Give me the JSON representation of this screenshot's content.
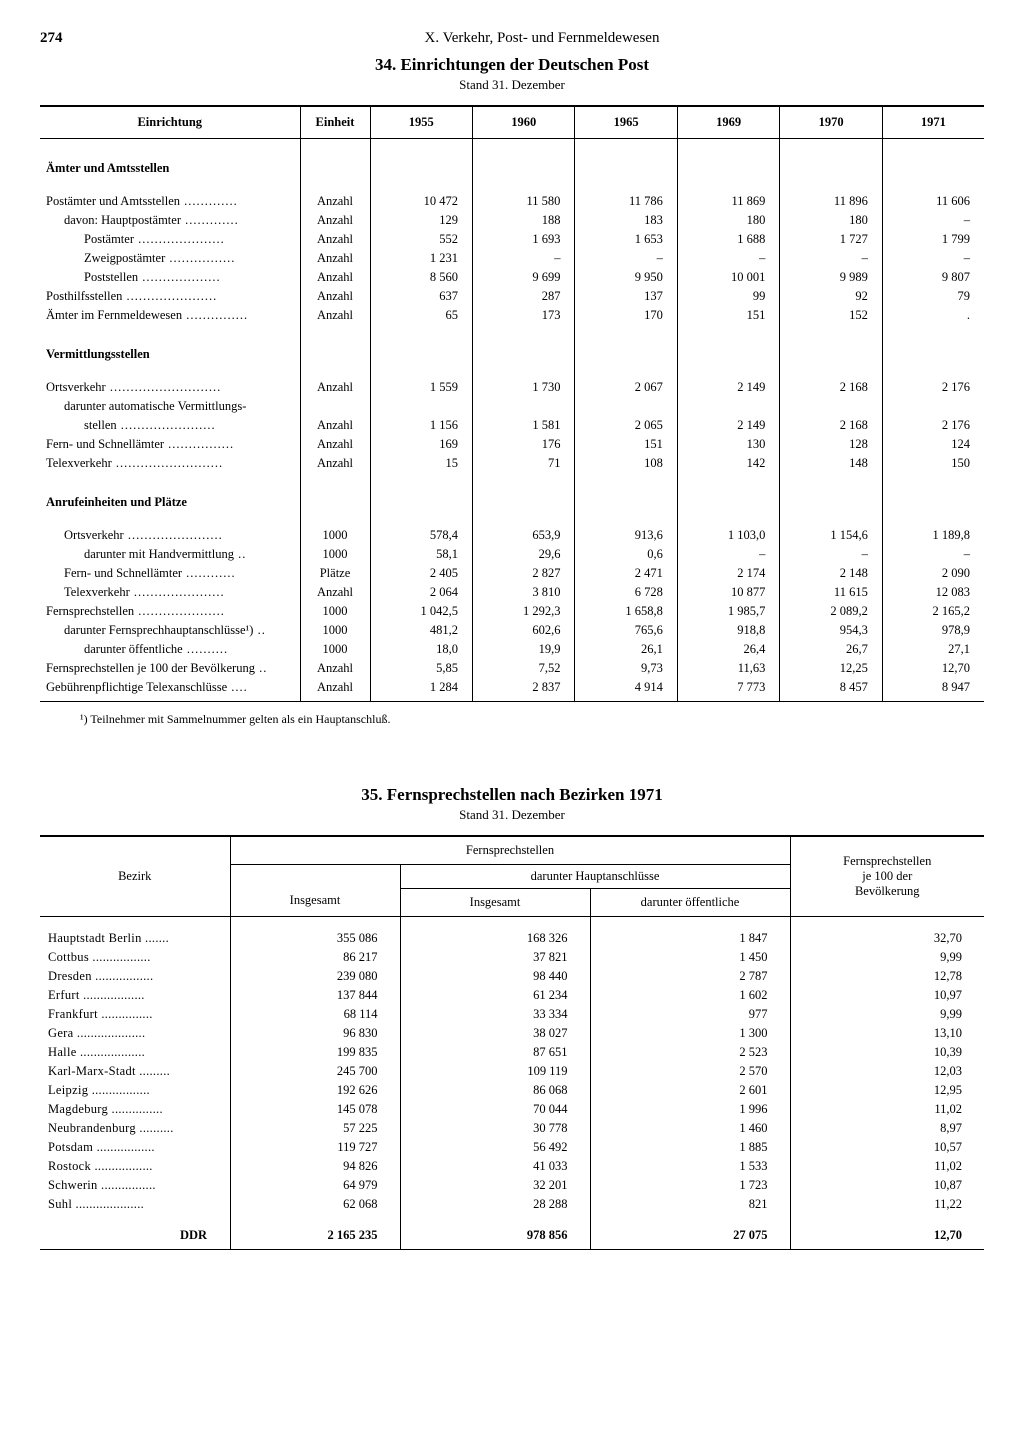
{
  "page_number": "274",
  "chapter": "X. Verkehr, Post- und Fernmeldewesen",
  "table34": {
    "title": "34. Einrichtungen der Deutschen Post",
    "subtitle": "Stand 31. Dezember",
    "columns": [
      "Einrichtung",
      "Einheit",
      "1955",
      "1960",
      "1965",
      "1969",
      "1970",
      "1971"
    ],
    "sections": [
      {
        "heading": "Ämter und Amtsstellen",
        "rows": [
          {
            "label": "Postämter und Amtsstellen",
            "indent": 0,
            "unit": "Anzahl",
            "v": [
              "10 472",
              "11 580",
              "11 786",
              "11 869",
              "11 896",
              "11 606"
            ]
          },
          {
            "label": "davon: Hauptpostämter",
            "indent": 1,
            "unit": "Anzahl",
            "v": [
              "129",
              "188",
              "183",
              "180",
              "180",
              "–"
            ]
          },
          {
            "label": "Postämter",
            "indent": 2,
            "unit": "Anzahl",
            "v": [
              "552",
              "1 693",
              "1 653",
              "1 688",
              "1 727",
              "1 799"
            ]
          },
          {
            "label": "Zweigpostämter",
            "indent": 2,
            "unit": "Anzahl",
            "v": [
              "1 231",
              "–",
              "–",
              "–",
              "–",
              "–"
            ]
          },
          {
            "label": "Poststellen",
            "indent": 2,
            "unit": "Anzahl",
            "v": [
              "8 560",
              "9 699",
              "9 950",
              "10 001",
              "9 989",
              "9 807"
            ]
          },
          {
            "label": "Posthilfsstellen",
            "indent": 0,
            "unit": "Anzahl",
            "v": [
              "637",
              "287",
              "137",
              "99",
              "92",
              "79"
            ]
          },
          {
            "label": "Ämter im Fernmeldewesen",
            "indent": 0,
            "unit": "Anzahl",
            "v": [
              "65",
              "173",
              "170",
              "151",
              "152",
              "."
            ]
          }
        ]
      },
      {
        "heading": "Vermittlungsstellen",
        "rows": [
          {
            "label": "Ortsverkehr",
            "indent": 0,
            "unit": "Anzahl",
            "v": [
              "1 559",
              "1 730",
              "2 067",
              "2 149",
              "2 168",
              "2 176"
            ]
          },
          {
            "label": "darunter automatische Vermittlungs-",
            "indent": 1,
            "unit": "",
            "v": [
              "",
              "",
              "",
              "",
              "",
              ""
            ],
            "nodots": true
          },
          {
            "label": "stellen",
            "indent": 2,
            "unit": "Anzahl",
            "v": [
              "1 156",
              "1 581",
              "2 065",
              "2 149",
              "2 168",
              "2 176"
            ]
          },
          {
            "label": "Fern- und Schnellämter",
            "indent": 0,
            "unit": "Anzahl",
            "v": [
              "169",
              "176",
              "151",
              "130",
              "128",
              "124"
            ]
          },
          {
            "label": "Telexverkehr",
            "indent": 0,
            "unit": "Anzahl",
            "v": [
              "15",
              "71",
              "108",
              "142",
              "148",
              "150"
            ]
          }
        ]
      },
      {
        "heading": "Anrufeinheiten und Plätze",
        "rows": [
          {
            "label": "Ortsverkehr",
            "indent": 1,
            "unit": "1000",
            "v": [
              "578,4",
              "653,9",
              "913,6",
              "1 103,0",
              "1 154,6",
              "1 189,8"
            ]
          },
          {
            "label": "darunter mit Handvermittlung",
            "indent": 2,
            "unit": "1000",
            "v": [
              "58,1",
              "29,6",
              "0,6",
              "–",
              "–",
              "–"
            ]
          },
          {
            "label": "Fern- und Schnellämter",
            "indent": 1,
            "unit": "Plätze",
            "v": [
              "2 405",
              "2 827",
              "2 471",
              "2 174",
              "2 148",
              "2 090"
            ]
          },
          {
            "label": "Telexverkehr",
            "indent": 1,
            "unit": "Anzahl",
            "v": [
              "2 064",
              "3 810",
              "6 728",
              "10 877",
              "11 615",
              "12 083"
            ]
          },
          {
            "label": "Fernsprechstellen",
            "indent": 0,
            "unit": "1000",
            "v": [
              "1 042,5",
              "1 292,3",
              "1 658,8",
              "1 985,7",
              "2 089,2",
              "2 165,2"
            ]
          },
          {
            "label": "darunter Fernsprechhauptanschlüsse¹)",
            "indent": 1,
            "unit": "1000",
            "v": [
              "481,2",
              "602,6",
              "765,6",
              "918,8",
              "954,3",
              "978,9"
            ]
          },
          {
            "label": "darunter öffentliche",
            "indent": 2,
            "unit": "1000",
            "v": [
              "18,0",
              "19,9",
              "26,1",
              "26,4",
              "26,7",
              "27,1"
            ]
          },
          {
            "label": "Fernsprechstellen je 100 der Bevölkerung",
            "indent": 0,
            "unit": "Anzahl",
            "v": [
              "5,85",
              "7,52",
              "9,73",
              "11,63",
              "12,25",
              "12,70"
            ]
          },
          {
            "label": "Gebührenpflichtige Telexanschlüsse",
            "indent": 0,
            "unit": "Anzahl",
            "v": [
              "1 284",
              "2 837",
              "4 914",
              "7 773",
              "8 457",
              "8 947"
            ]
          }
        ]
      }
    ],
    "footnote": "¹) Teilnehmer mit Sammelnummer gelten als ein Hauptanschluß."
  },
  "table35": {
    "title": "35. Fernsprechstellen nach Bezirken 1971",
    "subtitle": "Stand 31. Dezember",
    "head": {
      "bezirk": "Bezirk",
      "fern": "Fernsprechstellen",
      "insg": "Insgesamt",
      "haupt": "darunter Hauptanschlüsse",
      "oeff": "darunter öffentliche",
      "per100": "Fernsprechstellen\nje 100 der\nBevölkerung"
    },
    "rows": [
      {
        "b": "Hauptstadt Berlin",
        "i": "355 086",
        "h": "168 326",
        "o": "1 847",
        "p": "32,70"
      },
      {
        "b": "Cottbus",
        "i": "86 217",
        "h": "37 821",
        "o": "1 450",
        "p": "9,99"
      },
      {
        "b": "Dresden",
        "i": "239 080",
        "h": "98 440",
        "o": "2 787",
        "p": "12,78"
      },
      {
        "b": "Erfurt",
        "i": "137 844",
        "h": "61 234",
        "o": "1 602",
        "p": "10,97"
      },
      {
        "b": "Frankfurt",
        "i": "68 114",
        "h": "33 334",
        "o": "977",
        "p": "9,99"
      },
      {
        "b": "Gera",
        "i": "96 830",
        "h": "38 027",
        "o": "1 300",
        "p": "13,10"
      },
      {
        "b": "Halle",
        "i": "199 835",
        "h": "87 651",
        "o": "2 523",
        "p": "10,39"
      },
      {
        "b": "Karl-Marx-Stadt",
        "i": "245 700",
        "h": "109 119",
        "o": "2 570",
        "p": "12,03"
      },
      {
        "b": "Leipzig",
        "i": "192 626",
        "h": "86 068",
        "o": "2 601",
        "p": "12,95"
      },
      {
        "b": "Magdeburg",
        "i": "145 078",
        "h": "70 044",
        "o": "1 996",
        "p": "11,02"
      },
      {
        "b": "Neubrandenburg",
        "i": "57 225",
        "h": "30 778",
        "o": "1 460",
        "p": "8,97"
      },
      {
        "b": "Potsdam",
        "i": "119 727",
        "h": "56 492",
        "o": "1 885",
        "p": "10,57"
      },
      {
        "b": "Rostock",
        "i": "94 826",
        "h": "41 033",
        "o": "1 533",
        "p": "11,02"
      },
      {
        "b": "Schwerin",
        "i": "64 979",
        "h": "32 201",
        "o": "1 723",
        "p": "10,87"
      },
      {
        "b": "Suhl",
        "i": "62 068",
        "h": "28 288",
        "o": "821",
        "p": "11,22"
      }
    ],
    "total": {
      "b": "DDR",
      "i": "2 165 235",
      "h": "978 856",
      "o": "27 075",
      "p": "12,70"
    }
  }
}
